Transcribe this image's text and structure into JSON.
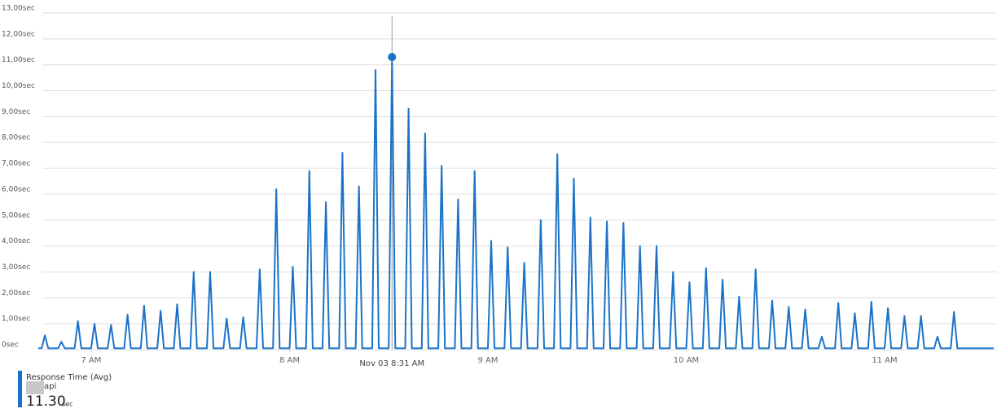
{
  "chart_data": {
    "type": "line",
    "legend_title": "Response Time (Avg)",
    "x": [
      404,
      405,
      406,
      407,
      410,
      411,
      412,
      415,
      416,
      417,
      420,
      421,
      422,
      425,
      426,
      427,
      430,
      431,
      432,
      435,
      436,
      437,
      440,
      441,
      442,
      445,
      446,
      447,
      450,
      451,
      452,
      455,
      456,
      457,
      460,
      461,
      462,
      465,
      466,
      467,
      470,
      471,
      472,
      475,
      476,
      477,
      480,
      481,
      482,
      485,
      486,
      487,
      490,
      491,
      492,
      495,
      496,
      497,
      500,
      501,
      502,
      505,
      506,
      507,
      510,
      511,
      512,
      515,
      516,
      517,
      520,
      521,
      522,
      525,
      526,
      527,
      530,
      531,
      532,
      535,
      536,
      537,
      540,
      541,
      542,
      545,
      546,
      547,
      550,
      551,
      552,
      555,
      556,
      557,
      560,
      561,
      562,
      565,
      566,
      567,
      570,
      571,
      572,
      575,
      576,
      577,
      580,
      581,
      582,
      585,
      586,
      587,
      590,
      591,
      592,
      595,
      596,
      597,
      600,
      601,
      602,
      605,
      606,
      607,
      610,
      611,
      612,
      615,
      616,
      617,
      620,
      621,
      622,
      625,
      626,
      627,
      630,
      631,
      632,
      635,
      636,
      637,
      640,
      641,
      642,
      645,
      646,
      647,
      650,
      651,
      652,
      655,
      656,
      657,
      660,
      661,
      662,
      665,
      666,
      667,
      670,
      671,
      672,
      675,
      676,
      677,
      680,
      681,
      682,
      693
    ],
    "series": [
      {
        "name": "api",
        "color": "#1a73c8",
        "values": [
          0.05,
          0.05,
          0.55,
          0.05,
          0.05,
          0.3,
          0.05,
          0.05,
          1.1,
          0.05,
          0.05,
          1.0,
          0.05,
          0.05,
          0.95,
          0.05,
          0.05,
          1.35,
          0.05,
          0.05,
          1.7,
          0.05,
          0.05,
          1.5,
          0.05,
          0.05,
          1.75,
          0.05,
          0.05,
          3.0,
          0.05,
          0.05,
          3.0,
          0.05,
          0.05,
          1.2,
          0.05,
          0.05,
          1.25,
          0.05,
          0.05,
          3.1,
          0.05,
          0.05,
          6.2,
          0.05,
          0.05,
          3.2,
          0.05,
          0.05,
          6.9,
          0.05,
          0.05,
          5.7,
          0.05,
          0.05,
          7.6,
          0.05,
          0.05,
          6.3,
          0.05,
          0.05,
          10.8,
          0.05,
          0.05,
          11.3,
          0.05,
          0.05,
          9.3,
          0.05,
          0.05,
          8.35,
          0.05,
          0.05,
          7.1,
          0.05,
          0.05,
          5.8,
          0.05,
          0.05,
          6.9,
          0.05,
          0.05,
          4.2,
          0.05,
          0.05,
          3.95,
          0.05,
          0.05,
          3.35,
          0.05,
          0.05,
          5.0,
          0.05,
          0.05,
          7.55,
          0.05,
          0.05,
          6.6,
          0.05,
          0.05,
          5.1,
          0.05,
          0.05,
          4.95,
          0.05,
          0.05,
          4.9,
          0.05,
          0.05,
          4.0,
          0.05,
          0.05,
          4.0,
          0.05,
          0.05,
          3.0,
          0.05,
          0.05,
          2.6,
          0.05,
          0.05,
          3.15,
          0.05,
          0.05,
          2.7,
          0.05,
          0.05,
          2.05,
          0.05,
          0.05,
          3.1,
          0.05,
          0.05,
          1.9,
          0.05,
          0.05,
          1.65,
          0.05,
          0.05,
          1.55,
          0.05,
          0.05,
          0.5,
          0.05,
          0.05,
          1.8,
          0.05,
          0.05,
          1.4,
          0.05,
          0.05,
          1.85,
          0.05,
          0.05,
          1.6,
          0.05,
          0.05,
          1.3,
          0.05,
          0.05,
          1.3,
          0.05,
          0.05,
          0.5,
          0.05,
          0.05,
          1.45,
          0.05,
          0.05
        ]
      }
    ],
    "xlim": [
      404,
      694
    ],
    "xticks": [
      {
        "value": 420,
        "label": "7 AM"
      },
      {
        "value": 480,
        "label": "8 AM"
      },
      {
        "value": 540,
        "label": "9 AM"
      },
      {
        "value": 600,
        "label": "10 AM"
      },
      {
        "value": 660,
        "label": "11 AM"
      }
    ],
    "ylim": [
      0,
      13
    ],
    "yticks": [
      {
        "value": 0,
        "label": "0sec"
      },
      {
        "value": 1,
        "label": "1,00sec"
      },
      {
        "value": 2,
        "label": "2,00sec"
      },
      {
        "value": 3,
        "label": "3,00sec"
      },
      {
        "value": 4,
        "label": "4,00sec"
      },
      {
        "value": 5,
        "label": "5,00sec"
      },
      {
        "value": 6,
        "label": "6,00sec"
      },
      {
        "value": 7,
        "label": "7,00sec"
      },
      {
        "value": 8,
        "label": "8,00sec"
      },
      {
        "value": 9,
        "label": "9,00sec"
      },
      {
        "value": 10,
        "label": "10,00sec"
      },
      {
        "value": 11,
        "label": "11,00sec"
      },
      {
        "value": 12,
        "label": "12,00sec"
      },
      {
        "value": 13,
        "label": "13,00sec"
      }
    ],
    "grid": true,
    "crosshair": {
      "x": 511,
      "label": "Nov 03 8:31 AM"
    },
    "summary": {
      "value": 11.3,
      "label": "11.30",
      "unit": "sec"
    }
  }
}
